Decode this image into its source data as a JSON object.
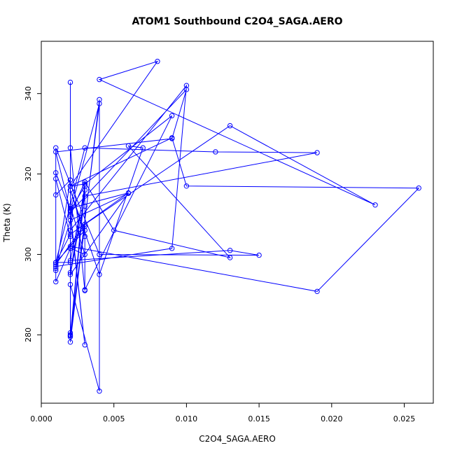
{
  "chart_data": {
    "type": "line",
    "title": "ATOM1 Southbound C2O4_SAGA.AERO",
    "xlabel": "C2O4_SAGA.AERO",
    "ylabel": "Theta (K)",
    "xlim": [
      0,
      0.027
    ],
    "ylim": [
      263,
      353
    ],
    "xticks": [
      0.0,
      0.005,
      0.01,
      0.015,
      0.02,
      0.025
    ],
    "xtick_labels": [
      "0.000",
      "0.005",
      "0.010",
      "0.015",
      "0.020",
      "0.025"
    ],
    "yticks": [
      280,
      300,
      320,
      340
    ],
    "ytick_labels": [
      "280",
      "300",
      "320",
      "340"
    ],
    "grid": false,
    "color": "#0000ff",
    "series": [
      {
        "x": [
          0.002,
          0.002,
          0.004,
          0.004,
          0.002,
          0.003,
          0.002,
          0.002,
          0.003,
          0.002,
          0.013,
          0.015,
          0.004,
          0.001,
          0.001,
          0.002,
          0.002,
          0.003,
          0.002,
          0.002,
          0.003,
          0.003,
          0.001,
          0.003,
          0.012,
          0.019,
          0.003,
          0.002,
          0.006,
          0.002,
          0.001,
          0.001,
          0.003,
          0.013,
          0.023,
          0.004,
          0.008,
          0.002,
          0.003,
          0.009,
          0.003,
          0.003,
          0.002,
          0.004,
          0.007,
          0.006,
          0.013,
          0.005,
          0.003,
          0.003,
          0.003,
          0.002,
          0.002,
          0.001,
          0.001,
          0.002,
          0.002,
          0.003,
          0.002,
          0.01,
          0.009,
          0.001,
          0.002,
          0.004,
          0.002,
          0.002,
          0.003,
          0.002,
          0.019,
          0.026,
          0.01,
          0.009,
          0.002,
          0.002,
          0.001,
          0.001,
          0.002,
          0.002,
          0.01,
          0.009,
          0.001,
          0.001,
          0.002,
          0.006,
          0.002,
          0.002,
          0.003,
          0.002,
          0.002,
          0.001
        ],
        "y": [
          342.8,
          292.5,
          266.0,
          338.5,
          278.2,
          318.0,
          310.0,
          279.5,
          316.0,
          298.5,
          301.0,
          299.8,
          300.0,
          326.5,
          318.8,
          304.5,
          312.0,
          300.0,
          301.5,
          280.0,
          317.5,
          306.0,
          298.0,
          326.5,
          325.5,
          325.3,
          314.5,
          295.0,
          315.2,
          308.5,
          296.5,
          297.5,
          307.5,
          332.0,
          312.3,
          343.5,
          348.0,
          317.0,
          317.5,
          334.5,
          291.2,
          304.5,
          316.0,
          295.0,
          326.5,
          327.0,
          299.2,
          306.0,
          318.0,
          312.0,
          291.0,
          326.5,
          318.5,
          314.8,
          293.2,
          301.5,
          309.5,
          277.5,
          310.5,
          341.0,
          328.8,
          325.5,
          310.8,
          337.5,
          279.8,
          280.5,
          307.0,
          302.0,
          290.8,
          316.5,
          317.0,
          329.0,
          317.0,
          318.5,
          296.0,
          320.3,
          311.0,
          306.0,
          342.0,
          301.5,
          297.0,
          298.0,
          305.0,
          315.3,
          311.5,
          295.5,
          317.0,
          311.0,
          298.0,
          298.0
        ]
      }
    ]
  }
}
